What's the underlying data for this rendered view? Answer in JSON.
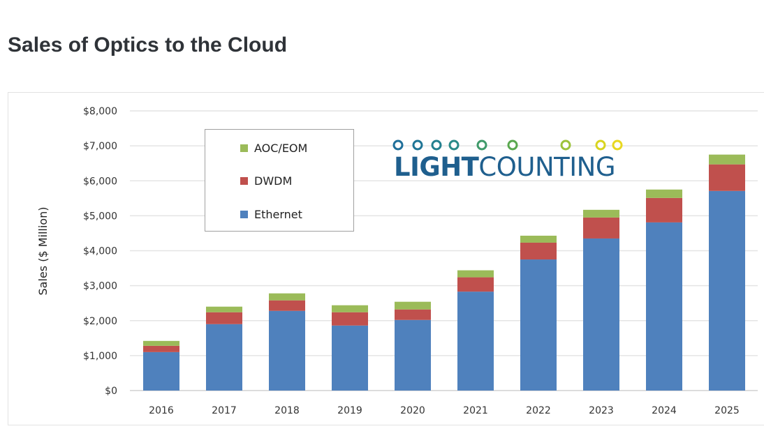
{
  "title": "Sales of Optics to the Cloud",
  "logo": {
    "text_bold": "LIGHT",
    "text_regular": "COUNTING"
  },
  "chart_data": {
    "type": "bar",
    "stacked": true,
    "title": "",
    "xlabel": "",
    "ylabel": "Sales ($ Million)",
    "ylim": [
      0,
      8000
    ],
    "yticks": [
      "$0",
      "$1,000",
      "$2,000",
      "$3,000",
      "$4,000",
      "$5,000",
      "$6,000",
      "$7,000",
      "$8,000"
    ],
    "grid": true,
    "legend_position": "top-left",
    "categories": [
      "2016",
      "2017",
      "2018",
      "2019",
      "2020",
      "2021",
      "2022",
      "2023",
      "2024",
      "2025"
    ],
    "series": [
      {
        "name": "Ethernet",
        "color": "#4f81bd",
        "values": [
          1100,
          1900,
          2280,
          1860,
          2020,
          2830,
          3750,
          4350,
          4810,
          5710
        ]
      },
      {
        "name": "DWDM",
        "color": "#c0504d",
        "values": [
          180,
          340,
          300,
          380,
          300,
          410,
          480,
          600,
          700,
          760
        ]
      },
      {
        "name": "AOC/EOM",
        "color": "#9bbb59",
        "values": [
          140,
          160,
          200,
          200,
          220,
          200,
          200,
          220,
          240,
          280
        ]
      }
    ]
  }
}
